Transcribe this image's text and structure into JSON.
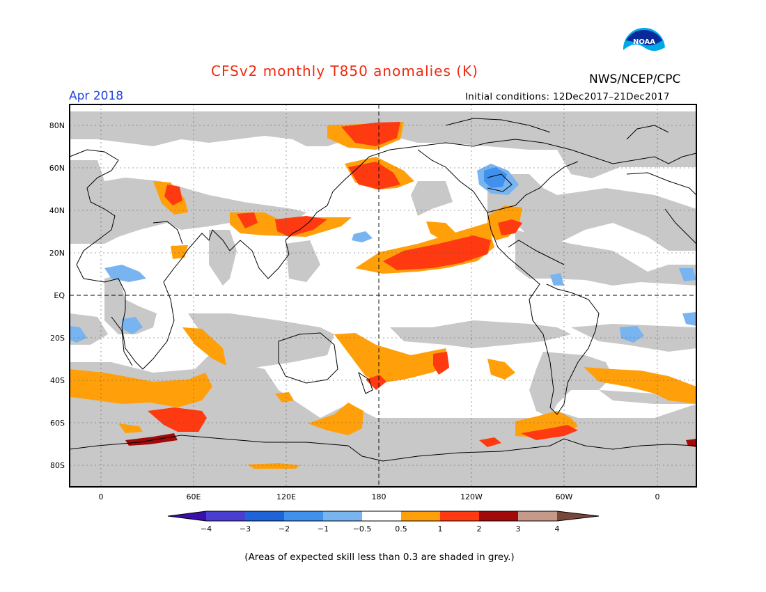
{
  "header": {
    "title": "CFSv2 monthly T850 anomalies (K)",
    "month": "Apr 2018",
    "organization": "NWS/NCEP/CPC",
    "initial_conditions": "Initial conditions: 12Dec2017–21Dec2017",
    "logo_text": "NOAA"
  },
  "axes": {
    "lat_labels": [
      "80N",
      "60N",
      "40N",
      "20N",
      "EQ",
      "20S",
      "40S",
      "60S",
      "80S"
    ],
    "lon_labels": [
      "0",
      "60E",
      "120E",
      "180",
      "120W",
      "60W",
      "0"
    ]
  },
  "colorbar": {
    "labels": [
      "−4",
      "−3",
      "−2",
      "−1",
      "−0.5",
      "0.5",
      "1",
      "2",
      "3",
      "4"
    ],
    "colors": [
      "#3a10a8",
      "#4a3ed0",
      "#1e63d8",
      "#4090ee",
      "#78b4f0",
      "#ffffff",
      "#ffa00a",
      "#ff3a10",
      "#a00a0a",
      "#c69a8a",
      "#78473a"
    ]
  },
  "footnote": "(Areas of expected skill less than 0.3 are shaded in grey.)",
  "colors": {
    "no_skill_grey": "#c8c8c8",
    "title_red": "#ee2a10",
    "month_blue": "#2245e0"
  }
}
